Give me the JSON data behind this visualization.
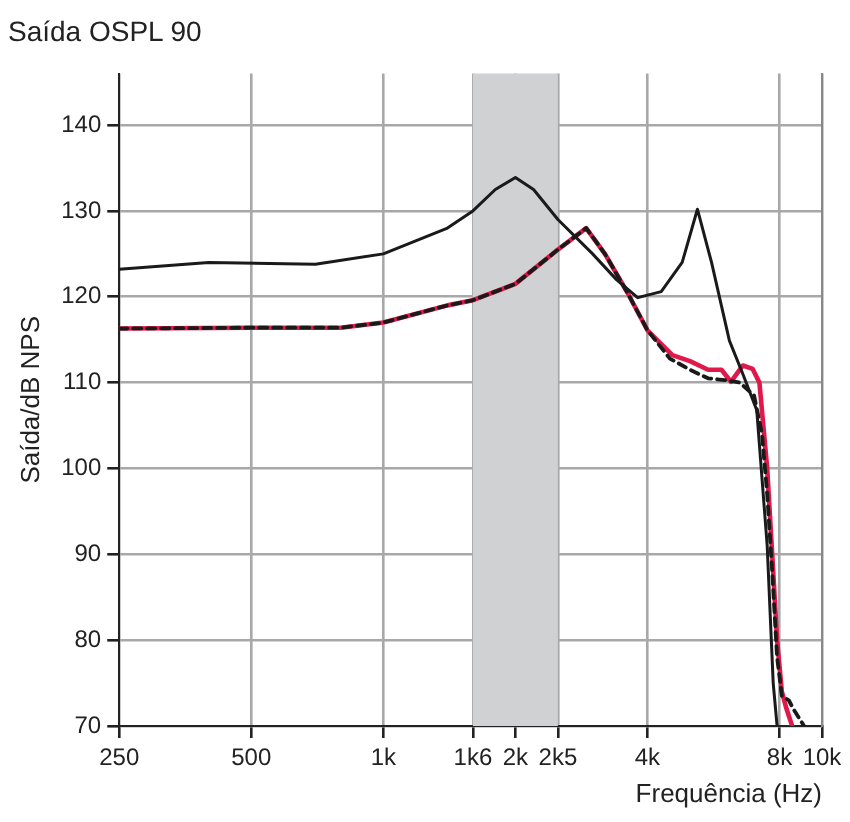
{
  "chart_data": {
    "type": "line",
    "title": "Saída OSPL 90",
    "xlabel": "Frequência (Hz)",
    "ylabel": "Saída/dB NPS",
    "log": "x",
    "xlim": [
      250,
      10000
    ],
    "xticks": [
      {
        "value": 250,
        "label": "250"
      },
      {
        "value": 500,
        "label": "500"
      },
      {
        "value": 1000,
        "label": "1k"
      },
      {
        "value": 1600,
        "label": "1k6"
      },
      {
        "value": 2000,
        "label": "2k"
      },
      {
        "value": 2500,
        "label": "2k5"
      },
      {
        "value": 4000,
        "label": "4k"
      },
      {
        "value": 8000,
        "label": "8k"
      },
      {
        "value": 10000,
        "label": "10k"
      }
    ],
    "ylim": [
      70,
      146
    ],
    "yticks": [
      70,
      80,
      90,
      100,
      110,
      120,
      130,
      140
    ],
    "grid": true,
    "legend": false,
    "marker": "none",
    "bands": [
      {
        "axis": "x",
        "from": 1600,
        "to": 2500,
        "color": "#d0d1d3"
      }
    ],
    "series": [
      {
        "color": "#1a1a1a",
        "line_style": "solid",
        "x": [
          250,
          400,
          700,
          1000,
          1400,
          1600,
          1800,
          2000,
          2200,
          2500,
          3000,
          3400,
          3800,
          4300,
          4800,
          5200,
          5600,
          6150,
          6600,
          7100,
          7500,
          7740,
          7900
        ],
        "values": [
          123.2,
          124,
          123.8,
          125,
          128,
          130,
          132.5,
          133.9,
          132.5,
          129,
          125,
          122,
          119.9,
          120.6,
          124,
          130.2,
          124,
          114.9,
          111,
          106.8,
          91,
          75,
          70
        ]
      },
      {
        "color": "#1a1a1a",
        "line_style": "dashed",
        "x": [
          250,
          500,
          800,
          1000,
          1400,
          1600,
          2000,
          2500,
          2900,
          3200,
          3600,
          4000,
          4500,
          5000,
          5500,
          6000,
          6500,
          7000,
          7300,
          7500,
          7700,
          7900,
          8100,
          8400,
          8600,
          9100
        ],
        "values": [
          116.3,
          116.4,
          116.4,
          117,
          119,
          119.6,
          121.5,
          125.5,
          128,
          125,
          120.5,
          116.1,
          112.8,
          111.5,
          110.5,
          110.3,
          110,
          108.5,
          104,
          97,
          88,
          78,
          73.5,
          73,
          72,
          70
        ]
      },
      {
        "color": "#e0194a",
        "line_style": "solid",
        "x": [
          250,
          500,
          800,
          1000,
          1400,
          1600,
          2000,
          2500,
          2900,
          3200,
          3600,
          4000,
          4560,
          5000,
          5500,
          5900,
          6200,
          6600,
          6950,
          7200,
          7500,
          7700,
          7900,
          8100,
          8300,
          8550
        ],
        "values": [
          116.3,
          116.4,
          116.4,
          117,
          119,
          119.6,
          121.5,
          125.5,
          128,
          125,
          120.5,
          116.1,
          113.2,
          112.5,
          111.5,
          111.5,
          110.1,
          112,
          111.6,
          110,
          100,
          90,
          80,
          74,
          72,
          70
        ]
      }
    ]
  }
}
